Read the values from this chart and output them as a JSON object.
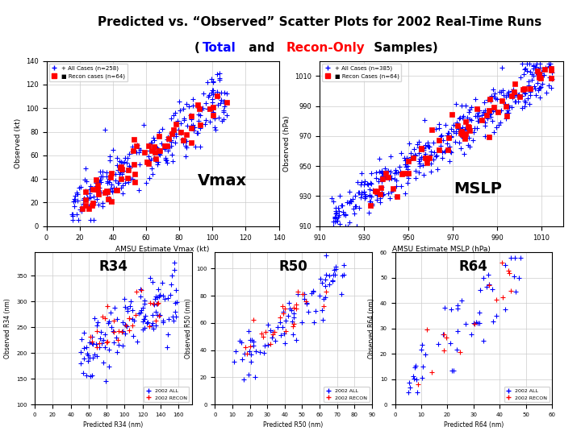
{
  "title_line1": "Predicted vs. “Observed” Scatter Plots for 2002 Real-Time Runs",
  "title_line2_parts": [
    {
      "text": "(",
      "color": "black",
      "underline": false,
      "bold": true
    },
    {
      "text": "Total",
      "color": "blue",
      "underline": true,
      "bold": true
    },
    {
      "text": " and ",
      "color": "black",
      "underline": false,
      "bold": true
    },
    {
      "text": "Recon-Only",
      "color": "red",
      "underline": true,
      "bold": true
    },
    {
      "text": " Samples)",
      "color": "black",
      "underline": false,
      "bold": true
    }
  ],
  "vmax": {
    "label": "Vmax",
    "xlabel": "AMSU Estimate Vmax (kt)",
    "ylabel": "Observed (kt)",
    "xlim": [
      0,
      140
    ],
    "ylim": [
      0,
      140
    ],
    "xticks": [
      0,
      20,
      40,
      60,
      80,
      100,
      120,
      140
    ],
    "yticks": [
      0,
      20,
      40,
      60,
      80,
      100,
      120,
      140
    ],
    "legend": [
      "+ All Cases (n=258)",
      "■ Recon cases (n=64)"
    ]
  },
  "mslp": {
    "label": "MSLP",
    "xlabel": "AMSU Estimate MSLP (hPa)",
    "ylabel": "Observed (hPa)",
    "xlim": [
      910,
      1020
    ],
    "ylim": [
      910,
      1020
    ],
    "xticks": [
      910,
      930,
      950,
      970,
      990,
      1010
    ],
    "yticks": [
      910,
      930,
      950,
      970,
      990,
      1010
    ],
    "legend": [
      "+ All Cases (n=385)",
      "■ Recon Cases (n=64)"
    ]
  },
  "r34": {
    "label": "R34",
    "xlabel": "Predicted R34 (nm)",
    "ylabel": "Observed R34 (nm)",
    "xlim": [
      0,
      175
    ],
    "ylim": [
      100,
      395
    ],
    "legend": [
      "2002 ALL",
      "2002 RECON"
    ]
  },
  "r50": {
    "label": "R50",
    "xlabel": "Predicted R50 (nm)",
    "ylabel": "Observed R50 (nm)",
    "xlim": [
      0,
      90
    ],
    "ylim": [
      0,
      112
    ],
    "legend": [
      "2002 ALL",
      "2002 RECON"
    ]
  },
  "r64": {
    "label": "R64",
    "xlabel": "Predicted R64 (nm)",
    "ylabel": "Observed R64 (nm)",
    "xlim": [
      0,
      60
    ],
    "ylim": [
      0,
      60
    ],
    "legend": [
      "2002 ALL",
      "2002 RECON"
    ]
  },
  "blue_color": "#0000FF",
  "red_color": "#FF0000",
  "bg_color": "#FFFFFF",
  "plot_bg": "#FFFFFF",
  "grid_color": "#CCCCCC"
}
